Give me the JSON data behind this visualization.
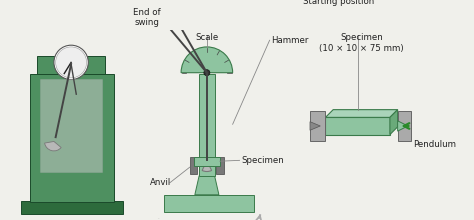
{
  "bg_color": "#f0f0eb",
  "labels": {
    "scale": "Scale",
    "starting_position": "Starting position",
    "hammer": "Hammer",
    "end_of_swing": "End of\nswing",
    "anvil": "Anvil",
    "specimen_center": "Specimen",
    "specimen_detail": "Specimen\n(10 × 10 × 75 mm)",
    "pendulum": "Pendulum"
  },
  "machine_color": "#4e9060",
  "machine_dark": "#2d6b3c",
  "scale_color": "#8ec4a0",
  "hammer_color": "#b8b8b8",
  "hammer_dark": "#787878",
  "specimen_color": "#8ec4a0",
  "text_color": "#222222",
  "line_color": "#444444"
}
